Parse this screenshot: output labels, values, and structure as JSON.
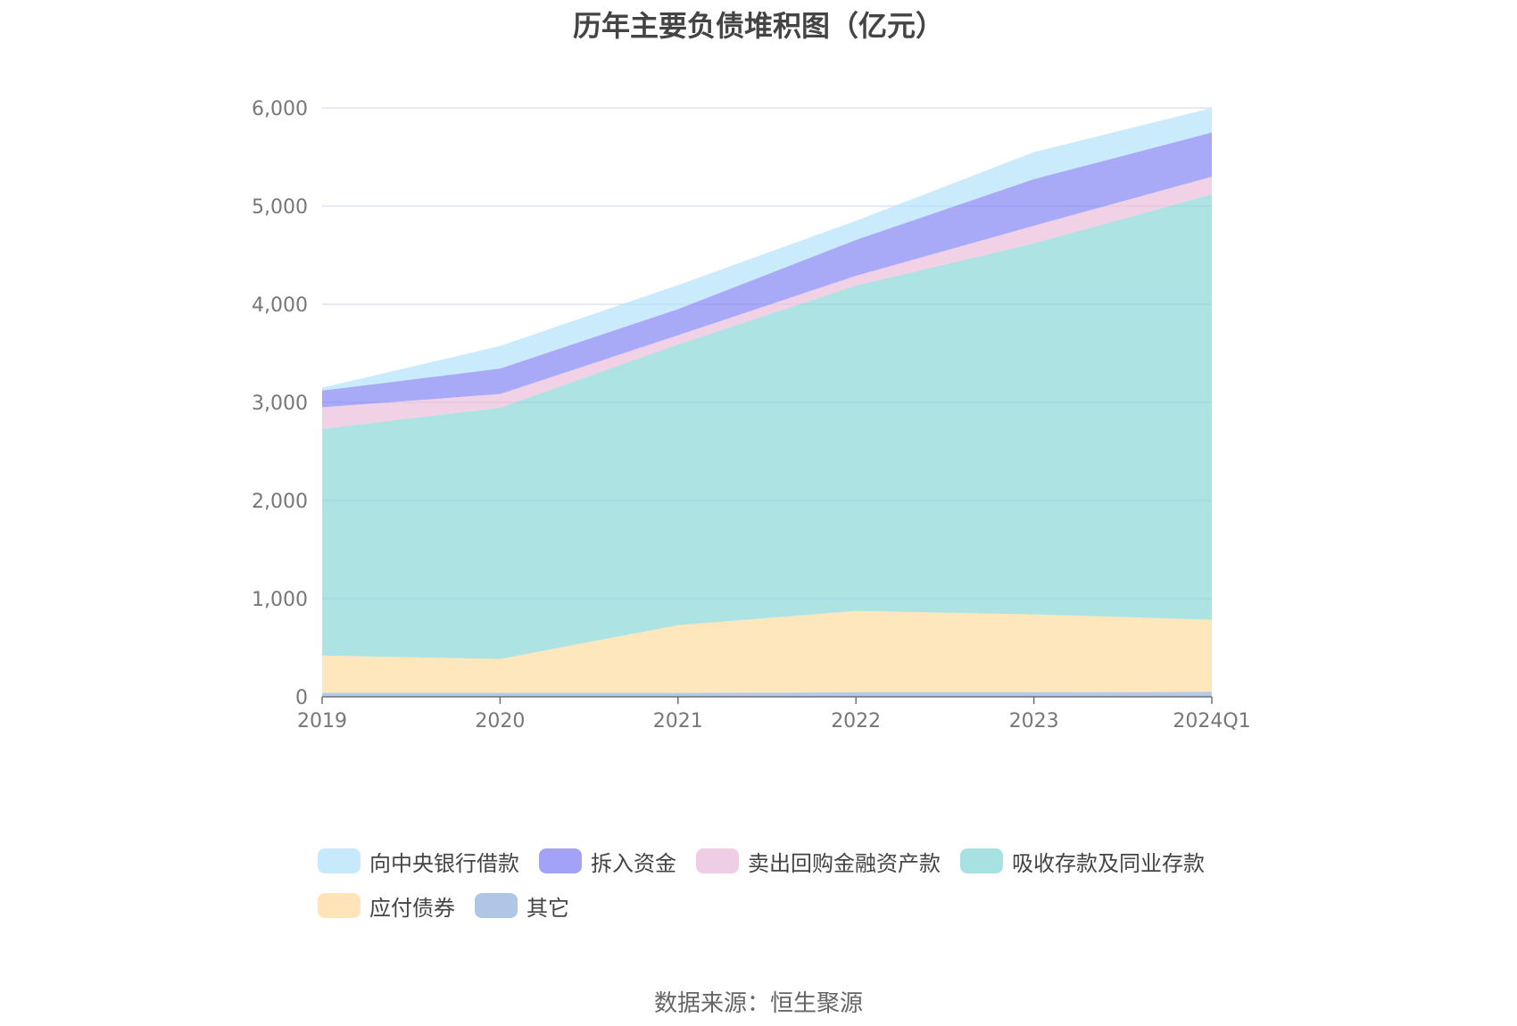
{
  "source": "数据来源：恒生聚源",
  "chart_data": {
    "type": "area",
    "stacked": true,
    "title": "历年主要负债堆积图（亿元）",
    "x": [
      "2019",
      "2020",
      "2021",
      "2022",
      "2023",
      "2024Q1"
    ],
    "y_ticks": [
      "0",
      "1,000",
      "2,000",
      "3,000",
      "4,000",
      "5,000",
      "6,000"
    ],
    "ylim": [
      0,
      6000
    ],
    "grid": true,
    "legend_position": "bottom",
    "series": [
      {
        "name": "其它",
        "color": "#8eaedc",
        "values": [
          40,
          40,
          40,
          45,
          45,
          50
        ]
      },
      {
        "name": "应付债券",
        "color": "#fdd99a",
        "values": [
          380,
          345,
          690,
          830,
          795,
          735
        ]
      },
      {
        "name": "吸收存款及同业存款",
        "color": "#82d4d6",
        "values": [
          2310,
          2560,
          2860,
          3315,
          3780,
          4335
        ]
      },
      {
        "name": "卖出回购金融资产款",
        "color": "#e8b8d8",
        "values": [
          220,
          140,
          95,
          100,
          180,
          180
        ]
      },
      {
        "name": "拆入资金",
        "color": "#7a7cf2",
        "values": [
          170,
          260,
          265,
          365,
          475,
          450
        ]
      },
      {
        "name": "向中央银行借款",
        "color": "#aee1fa",
        "values": [
          30,
          230,
          245,
          195,
          275,
          250
        ]
      }
    ],
    "legend_order": [
      "向中央银行借款",
      "拆入资金",
      "卖出回购金融资产款",
      "吸收存款及同业存款",
      "应付债券",
      "其它"
    ]
  }
}
